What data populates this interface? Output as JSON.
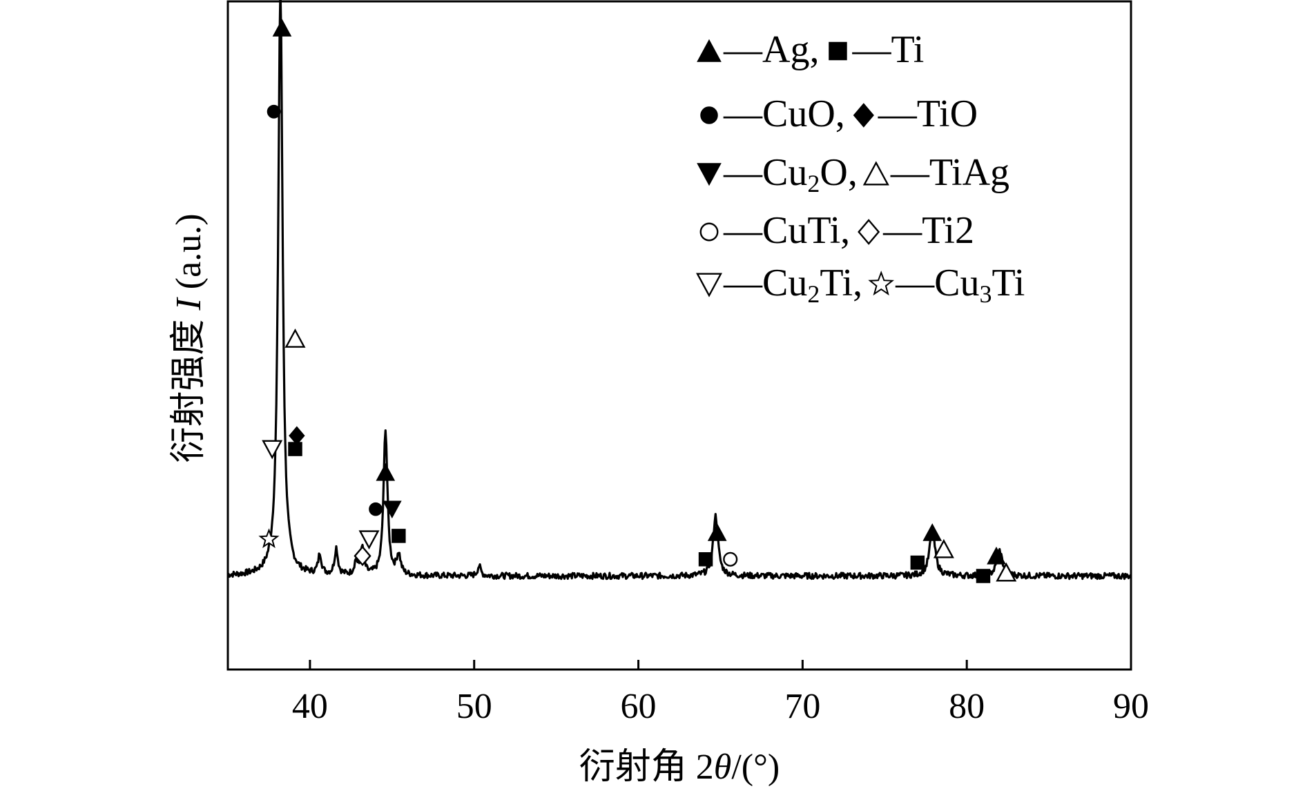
{
  "chart_data": {
    "type": "line",
    "title": "",
    "xlabel_prefix": "衍射角 2",
    "xlabel_symbol": "θ",
    "xlabel_suffix": "/(°)",
    "ylabel_prefix": "衍射强度 ",
    "ylabel_symbol": "I",
    "ylabel_suffix": " (a.u.)",
    "xlim": [
      35,
      90
    ],
    "ylim": [
      0,
      100
    ],
    "xticks": [
      "40",
      "50",
      "60",
      "70",
      "80",
      "90"
    ],
    "yticks_shown": false,
    "grid": false,
    "series": [
      {
        "peaks": [
          {
            "x": 38.2,
            "y": 88.0,
            "w": 0.16
          },
          {
            "x": 40.6,
            "y": 3.0,
            "w": 0.12
          },
          {
            "x": 41.6,
            "y": 4.0,
            "w": 0.12
          },
          {
            "x": 42.8,
            "y": 2.0,
            "w": 0.12
          },
          {
            "x": 43.2,
            "y": 4.0,
            "w": 0.12
          },
          {
            "x": 44.6,
            "y": 22.0,
            "w": 0.14
          },
          {
            "x": 45.4,
            "y": 3.0,
            "w": 0.14
          },
          {
            "x": 50.3,
            "y": 1.5,
            "w": 0.12
          },
          {
            "x": 64.7,
            "y": 9.0,
            "w": 0.18
          },
          {
            "x": 77.9,
            "y": 7.0,
            "w": 0.2
          },
          {
            "x": 82.0,
            "y": 3.8,
            "w": 0.2
          }
        ],
        "baseline": 14.0
      }
    ],
    "peak_markers": [
      {
        "symbol": "filled-triangle",
        "x": 38.3,
        "y": 96.0
      },
      {
        "symbol": "filled-circle",
        "x": 37.8,
        "y": 83.5
      },
      {
        "symbol": "open-triangle",
        "x": 39.1,
        "y": 49.5
      },
      {
        "symbol": "filled-diamond",
        "x": 39.2,
        "y": 35.0
      },
      {
        "symbol": "filled-square",
        "x": 39.1,
        "y": 33.0
      },
      {
        "symbol": "open-inverted-triangle",
        "x": 37.7,
        "y": 33.0
      },
      {
        "symbol": "open-star",
        "x": 37.5,
        "y": 19.5
      },
      {
        "symbol": "filled-triangle",
        "x": 44.6,
        "y": 29.5
      },
      {
        "symbol": "filled-circle",
        "x": 44.0,
        "y": 24.0
      },
      {
        "symbol": "filled-inverted-triangle",
        "x": 45.0,
        "y": 24.0
      },
      {
        "symbol": "filled-square",
        "x": 45.4,
        "y": 20.0
      },
      {
        "symbol": "open-inverted-triangle",
        "x": 43.6,
        "y": 19.5
      },
      {
        "symbol": "open-diamond",
        "x": 43.2,
        "y": 17.0
      },
      {
        "symbol": "filled-triangle",
        "x": 64.8,
        "y": 20.5
      },
      {
        "symbol": "filled-square",
        "x": 64.1,
        "y": 16.5
      },
      {
        "symbol": "open-circle",
        "x": 65.6,
        "y": 16.5
      },
      {
        "symbol": "filled-triangle",
        "x": 77.9,
        "y": 20.5
      },
      {
        "symbol": "open-triangle",
        "x": 78.6,
        "y": 18.0
      },
      {
        "symbol": "filled-square",
        "x": 77.0,
        "y": 16.0
      },
      {
        "symbol": "filled-triangle",
        "x": 81.8,
        "y": 17.0
      },
      {
        "symbol": "open-triangle",
        "x": 82.4,
        "y": 14.5
      },
      {
        "symbol": "filled-square",
        "x": 81.0,
        "y": 14.0
      }
    ],
    "legend": {
      "position": "top-right",
      "rows": [
        [
          {
            "symbol": "filled-triangle",
            "name": "Ag",
            "sub": "",
            "name_tail": "",
            "sep": ","
          },
          {
            "symbol": "filled-square",
            "name": "Ti",
            "sub": "",
            "name_tail": "",
            "sep": ""
          }
        ],
        [
          {
            "symbol": "filled-circle",
            "name": "CuO",
            "sub": "",
            "name_tail": "",
            "sep": ","
          },
          {
            "symbol": "filled-diamond",
            "name": "TiO",
            "sub": "",
            "name_tail": "",
            "sep": ""
          }
        ],
        [
          {
            "symbol": "filled-inverted-triangle",
            "name": "Cu",
            "sub": "2",
            "name_tail": "O",
            "sep": ","
          },
          {
            "symbol": "open-triangle",
            "name": "TiAg",
            "sub": "",
            "name_tail": "",
            "sep": ""
          }
        ],
        [
          {
            "symbol": "open-circle",
            "name": "CuTi",
            "sub": "",
            "name_tail": "",
            "sep": ","
          },
          {
            "symbol": "open-diamond",
            "name": "Ti2",
            "sub": "",
            "name_tail": "",
            "sep": ""
          }
        ],
        [
          {
            "symbol": "open-inverted-triangle",
            "name": "Cu",
            "sub": "2",
            "name_tail": "Ti",
            "sep": ","
          },
          {
            "symbol": "open-star",
            "name": "Cu",
            "sub": "3",
            "name_tail": "Ti",
            "sep": ""
          }
        ]
      ],
      "dash": "—"
    },
    "colors": {
      "line": "#000000",
      "axes": "#000000",
      "background": "#ffffff"
    }
  }
}
